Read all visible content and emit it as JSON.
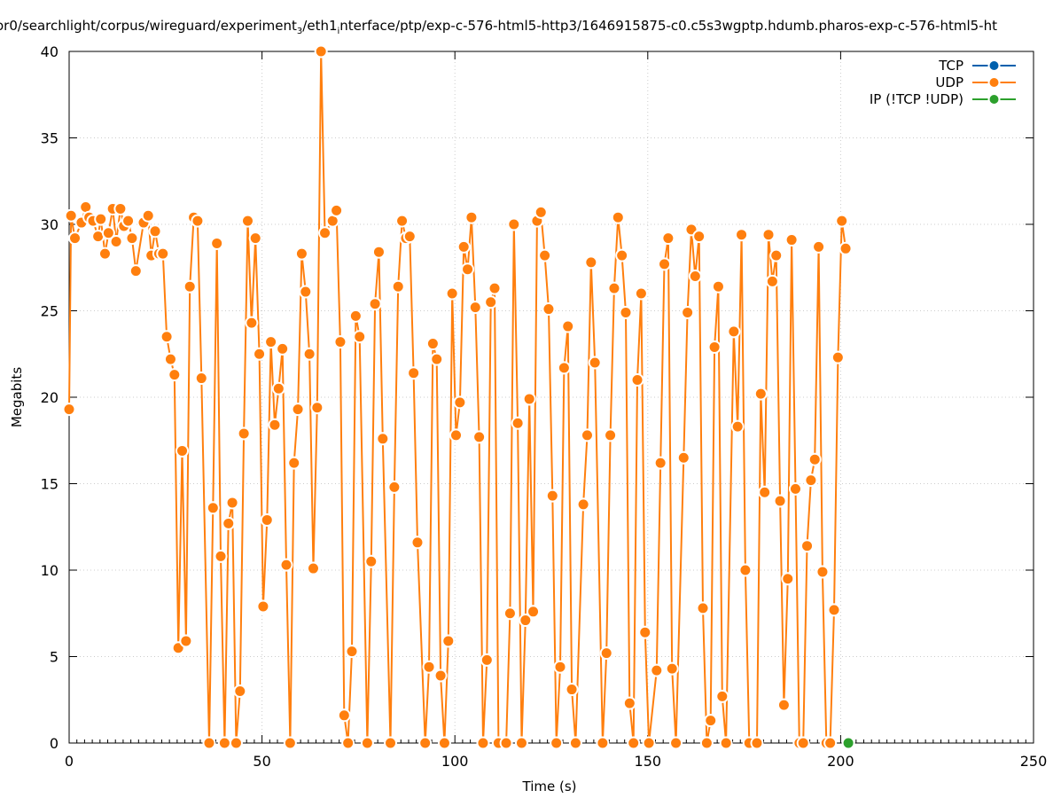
{
  "colors": {
    "tcp": "#0060ad",
    "udp": "#ff7f0e",
    "ip": "#2ca02c",
    "grid": "#cccccc",
    "axis": "#000000"
  },
  "chart_data": {
    "type": "line",
    "title": "/home/user/searchlight/corpus/wireguard/experiment",
    "title_parts": {
      "pre": "or0/searchlight/corpus/wireguard/experiment",
      "sub1": "3",
      "mid": "/eth1",
      "sub2": "i",
      "post": "nterface/ptp/exp-c-576-html5-http3/1646915875-c0.c5s3wgptp.hdumb.pharos-exp-c-576-html5-ht"
    },
    "xlabel": "Time (s)",
    "ylabel": "Megabits",
    "xlim": [
      0,
      250
    ],
    "ylim": [
      0,
      40
    ],
    "x_ticks": [
      "0",
      "50",
      "100",
      "150",
      "200",
      "250"
    ],
    "y_ticks": [
      "0",
      "5",
      "10",
      "15",
      "20",
      "25",
      "30",
      "35",
      "40"
    ],
    "grid": true,
    "legend_position": "top-right",
    "legend": [
      {
        "name": "TCP",
        "key": "tcp"
      },
      {
        "name": "UDP",
        "key": "udp"
      },
      {
        "name": "IP (!TCP  !UDP)",
        "key": "ip"
      }
    ],
    "series": [
      {
        "name": "UDP",
        "key": "udp",
        "points": [
          [
            0,
            19.3
          ],
          [
            0.5,
            30.5
          ],
          [
            1.5,
            29.2
          ],
          [
            3.2,
            30.1
          ],
          [
            4.3,
            31.0
          ],
          [
            5.2,
            30.4
          ],
          [
            6.2,
            30.2
          ],
          [
            7.5,
            29.3
          ],
          [
            8.2,
            30.3
          ],
          [
            9.3,
            28.3
          ],
          [
            10.2,
            29.5
          ],
          [
            11.3,
            30.9
          ],
          [
            12.2,
            29.0
          ],
          [
            13.3,
            30.9
          ],
          [
            14.2,
            29.9
          ],
          [
            15.3,
            30.2
          ],
          [
            16.3,
            29.2
          ],
          [
            17.3,
            27.3
          ],
          [
            19.3,
            30.1
          ],
          [
            20.5,
            30.5
          ],
          [
            21.3,
            28.2
          ],
          [
            22.3,
            29.6
          ],
          [
            23.3,
            28.3
          ],
          [
            24.3,
            28.3
          ],
          [
            25.3,
            23.5
          ],
          [
            26.3,
            22.2
          ],
          [
            27.3,
            21.3
          ],
          [
            28.3,
            5.5
          ],
          [
            29.3,
            16.9
          ],
          [
            30.3,
            5.9
          ],
          [
            31.3,
            26.4
          ],
          [
            32.3,
            30.4
          ],
          [
            33.3,
            30.2
          ],
          [
            34.3,
            21.1
          ],
          [
            36.3,
            0
          ],
          [
            37.3,
            13.6
          ],
          [
            38.3,
            28.9
          ],
          [
            39.3,
            10.8
          ],
          [
            40.3,
            0
          ],
          [
            41.3,
            12.7
          ],
          [
            42.3,
            13.9
          ],
          [
            43.3,
            0
          ],
          [
            44.3,
            3.0
          ],
          [
            45.3,
            17.9
          ],
          [
            46.3,
            30.2
          ],
          [
            47.3,
            24.3
          ],
          [
            48.3,
            29.2
          ],
          [
            49.3,
            22.5
          ],
          [
            50.3,
            7.9
          ],
          [
            51.3,
            12.9
          ],
          [
            52.3,
            23.2
          ],
          [
            53.3,
            18.4
          ],
          [
            54.3,
            20.5
          ],
          [
            55.3,
            22.8
          ],
          [
            56.3,
            10.3
          ],
          [
            57.3,
            0
          ],
          [
            58.3,
            16.2
          ],
          [
            59.3,
            19.3
          ],
          [
            60.3,
            28.3
          ],
          [
            61.3,
            26.1
          ],
          [
            62.3,
            22.5
          ],
          [
            63.3,
            10.1
          ],
          [
            64.3,
            19.4
          ],
          [
            65.3,
            40.0
          ],
          [
            66.3,
            29.5
          ],
          [
            68.3,
            30.2
          ],
          [
            69.3,
            30.8
          ],
          [
            70.3,
            23.2
          ],
          [
            71.3,
            1.6
          ],
          [
            72.3,
            0
          ],
          [
            73.3,
            5.3
          ],
          [
            74.3,
            24.7
          ],
          [
            75.3,
            23.5
          ],
          [
            77.3,
            0
          ],
          [
            78.3,
            10.5
          ],
          [
            79.3,
            25.4
          ],
          [
            80.3,
            28.4
          ],
          [
            81.3,
            17.6
          ],
          [
            83.3,
            0
          ],
          [
            84.3,
            14.8
          ],
          [
            85.3,
            26.4
          ],
          [
            86.3,
            30.2
          ],
          [
            87.3,
            29.2
          ],
          [
            88.3,
            29.3
          ],
          [
            89.3,
            21.4
          ],
          [
            90.3,
            11.6
          ],
          [
            92.3,
            0
          ],
          [
            93.3,
            4.4
          ],
          [
            94.3,
            23.1
          ],
          [
            95.3,
            22.2
          ],
          [
            96.3,
            3.9
          ],
          [
            97.3,
            0
          ],
          [
            98.3,
            5.9
          ],
          [
            99.3,
            26.0
          ],
          [
            100.3,
            17.8
          ],
          [
            101.3,
            19.7
          ],
          [
            102.3,
            28.7
          ],
          [
            103.3,
            27.4
          ],
          [
            104.3,
            30.4
          ],
          [
            105.3,
            25.2
          ],
          [
            106.3,
            17.7
          ],
          [
            107.3,
            0
          ],
          [
            108.3,
            4.8
          ],
          [
            109.3,
            25.5
          ],
          [
            110.3,
            26.3
          ],
          [
            111.3,
            0
          ],
          [
            113.3,
            0
          ],
          [
            114.3,
            7.5
          ],
          [
            115.3,
            30.0
          ],
          [
            116.3,
            18.5
          ],
          [
            117.3,
            0
          ],
          [
            118.3,
            7.1
          ],
          [
            119.3,
            19.9
          ],
          [
            120.3,
            7.6
          ],
          [
            121.3,
            30.2
          ],
          [
            122.3,
            30.7
          ],
          [
            123.3,
            28.2
          ],
          [
            124.3,
            25.1
          ],
          [
            125.3,
            14.3
          ],
          [
            126.3,
            0
          ],
          [
            127.3,
            4.4
          ],
          [
            128.3,
            21.7
          ],
          [
            129.3,
            24.1
          ],
          [
            130.3,
            3.1
          ],
          [
            131.3,
            0
          ],
          [
            133.3,
            13.8
          ],
          [
            134.3,
            17.8
          ],
          [
            135.3,
            27.8
          ],
          [
            136.3,
            22.0
          ],
          [
            138.3,
            0
          ],
          [
            139.3,
            5.2
          ],
          [
            140.3,
            17.8
          ],
          [
            141.3,
            26.3
          ],
          [
            142.3,
            30.4
          ],
          [
            143.3,
            28.2
          ],
          [
            144.3,
            24.9
          ],
          [
            145.3,
            2.3
          ],
          [
            146.3,
            0
          ],
          [
            147.3,
            21.0
          ],
          [
            148.3,
            26.0
          ],
          [
            149.3,
            6.4
          ],
          [
            150.3,
            0
          ],
          [
            152.3,
            4.2
          ],
          [
            153.3,
            16.2
          ],
          [
            154.3,
            27.7
          ],
          [
            155.3,
            29.2
          ],
          [
            156.3,
            4.3
          ],
          [
            157.3,
            0
          ],
          [
            159.3,
            16.5
          ],
          [
            160.3,
            24.9
          ],
          [
            161.3,
            29.7
          ],
          [
            162.3,
            27.0
          ],
          [
            163.3,
            29.3
          ],
          [
            164.3,
            7.8
          ],
          [
            165.3,
            0
          ],
          [
            166.3,
            1.3
          ],
          [
            167.3,
            22.9
          ],
          [
            168.3,
            26.4
          ],
          [
            169.3,
            2.7
          ],
          [
            170.3,
            0
          ],
          [
            172.3,
            23.8
          ],
          [
            173.3,
            18.3
          ],
          [
            174.3,
            29.4
          ],
          [
            175.3,
            10.0
          ],
          [
            176.3,
            0
          ],
          [
            178.3,
            0
          ],
          [
            179.3,
            20.2
          ],
          [
            180.3,
            14.5
          ],
          [
            181.3,
            29.4
          ],
          [
            182.3,
            26.7
          ],
          [
            183.3,
            28.2
          ],
          [
            184.3,
            14.0
          ],
          [
            185.3,
            2.2
          ],
          [
            186.3,
            9.5
          ],
          [
            187.3,
            29.1
          ],
          [
            188.3,
            14.7
          ],
          [
            189.3,
            0
          ],
          [
            190.3,
            0
          ],
          [
            191.3,
            11.4
          ],
          [
            192.3,
            15.2
          ],
          [
            193.3,
            16.4
          ],
          [
            194.3,
            28.7
          ],
          [
            195.3,
            9.9
          ],
          [
            196.3,
            0
          ],
          [
            197.3,
            0
          ],
          [
            198.3,
            7.7
          ],
          [
            199.3,
            22.3
          ],
          [
            200.3,
            30.2
          ],
          [
            201.3,
            28.6
          ]
        ]
      },
      {
        "name": "IP (!TCP  !UDP)",
        "key": "ip",
        "points": [
          [
            202,
            0
          ]
        ]
      }
    ]
  }
}
